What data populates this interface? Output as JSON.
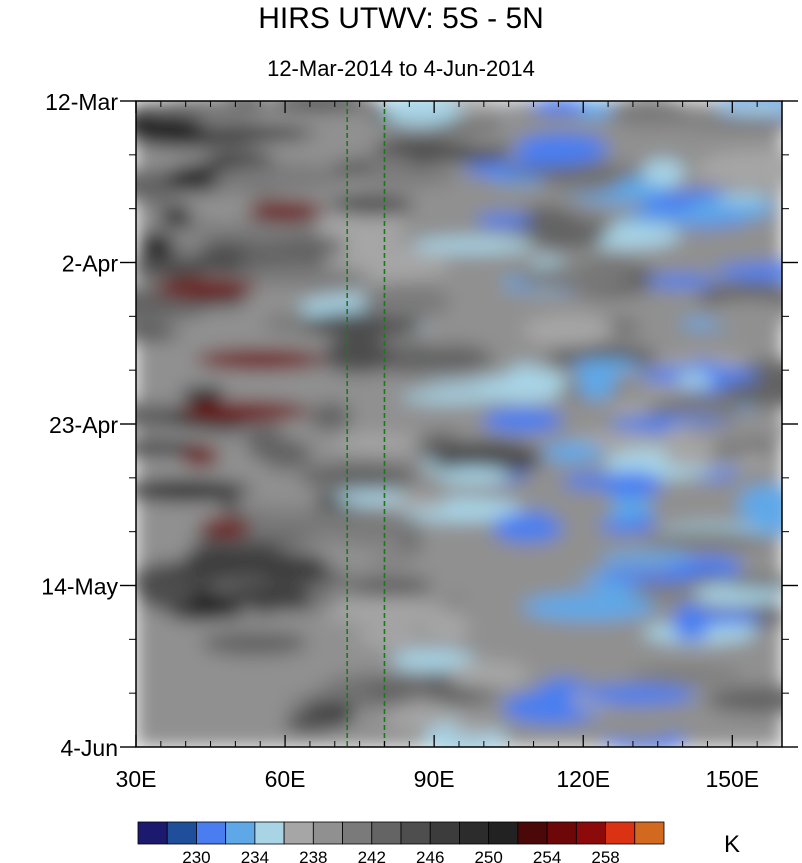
{
  "chart_data": {
    "type": "heatmap",
    "title": "HIRS UTWV: 5S - 5N",
    "subtitle": "12-Mar-2014 to 4-Jun-2014",
    "x_tick_labels": [
      "30E",
      "60E",
      "90E",
      "120E",
      "150E"
    ],
    "x_ticks": [
      30,
      60,
      90,
      120,
      150
    ],
    "xlim": [
      30,
      160
    ],
    "y_tick_labels": [
      "12-Mar",
      "2-Apr",
      "23-Apr",
      "14-May",
      "4-Jun"
    ],
    "y_ticks": [
      "2014-03-12",
      "2014-04-02",
      "2014-04-23",
      "2014-05-14",
      "2014-06-04"
    ],
    "ylim": [
      "2014-03-12",
      "2014-06-04"
    ],
    "y_reversed": true,
    "reference_lines_x": [
      72.5,
      80
    ],
    "reference_line_color": "#1a7a1a",
    "colorbar": {
      "unit": "K",
      "levels": [
        228,
        230,
        232,
        234,
        236,
        238,
        240,
        242,
        244,
        246,
        248,
        250,
        252,
        254,
        256,
        258,
        260
      ],
      "labels": [
        "230",
        "234",
        "238",
        "242",
        "246",
        "250",
        "254",
        "258"
      ],
      "label_values": [
        230,
        234,
        238,
        242,
        246,
        250,
        254,
        258
      ],
      "colors": [
        "#1c1a6e",
        "#1f4f9a",
        "#4a7ef0",
        "#5ea8e8",
        "#a8d4e6",
        "#a6a6a6",
        "#909090",
        "#7a7a7a",
        "#646464",
        "#4e4e4e",
        "#3c3c3c",
        "#2c2c2c",
        "#222222",
        "#4a0808",
        "#6e0808",
        "#8c0a0a",
        "#dc3214",
        "#d2691e"
      ]
    }
  }
}
